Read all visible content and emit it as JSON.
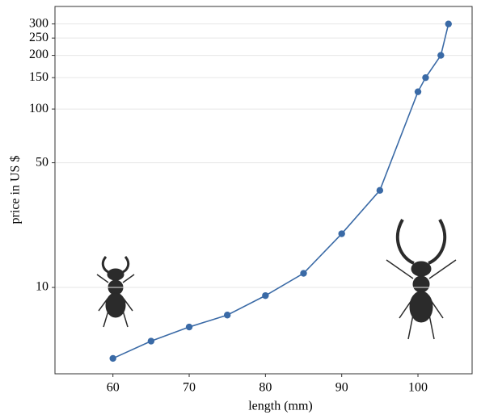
{
  "chart_data": {
    "type": "line",
    "x_label": "length (mm)",
    "y_label": "price in US $",
    "x": [
      60,
      65,
      70,
      75,
      80,
      85,
      90,
      95,
      100,
      101,
      103,
      104
    ],
    "series": [
      {
        "color": "#3a6aa6",
        "values": [
          4,
          5,
          6,
          7,
          9,
          12,
          20,
          35,
          125,
          150,
          200,
          300
        ]
      }
    ],
    "xlim": [
      52.4,
      107.1
    ],
    "ylim": [
      3.28,
      376
    ],
    "y_scale": "log",
    "xticks": [
      60,
      70,
      80,
      90,
      100
    ],
    "yticks": [
      10,
      50,
      100,
      150,
      200,
      250,
      300
    ],
    "grid": true
  }
}
